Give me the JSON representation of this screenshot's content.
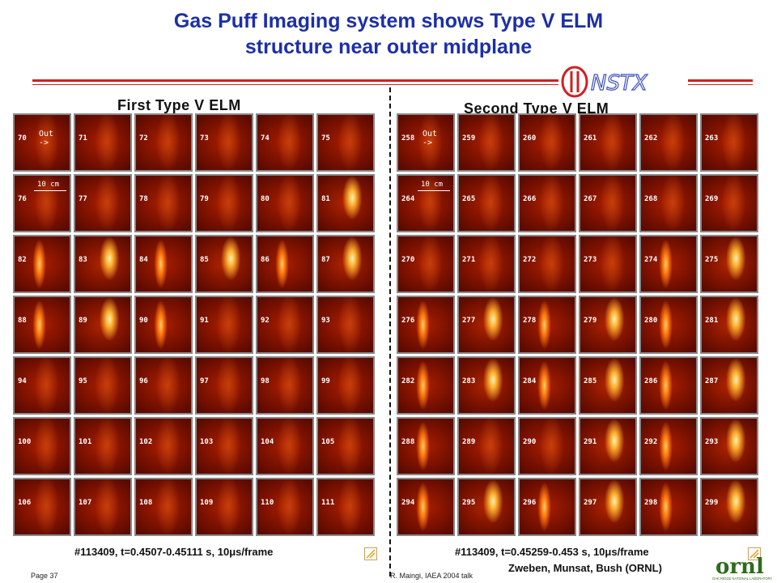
{
  "title": {
    "line1": "Gas Puff Imaging system shows Type V ELM",
    "line2": "structure near outer midplane"
  },
  "logo_text": "NSTX",
  "colors": {
    "title": "#1c2fa8",
    "accent_rule": "#d02020",
    "frame_base": "#7e1200"
  },
  "left_panel": {
    "title": "First Type V ELM",
    "out_label": "Out",
    "out_arrow": "->",
    "scale_label": "10 cm",
    "frames": [
      "70",
      "71",
      "72",
      "73",
      "74",
      "75",
      "76",
      "77",
      "78",
      "79",
      "80",
      "81",
      "82",
      "83",
      "84",
      "85",
      "86",
      "87",
      "88",
      "89",
      "90",
      "91",
      "92",
      "93",
      "94",
      "95",
      "96",
      "97",
      "98",
      "99",
      "100",
      "101",
      "102",
      "103",
      "104",
      "105",
      "106",
      "107",
      "108",
      "109",
      "110",
      "111"
    ],
    "caption": "#113409, t=0.4507-0.45111 s, 10μs/frame"
  },
  "right_panel": {
    "title": "Second Type V ELM",
    "out_label": "Out",
    "out_arrow": "->",
    "scale_label": "10 cm",
    "frames": [
      "258",
      "259",
      "260",
      "261",
      "262",
      "263",
      "264",
      "265",
      "266",
      "267",
      "268",
      "269",
      "270",
      "271",
      "272",
      "273",
      "274",
      "275",
      "276",
      "277",
      "278",
      "279",
      "280",
      "281",
      "282",
      "283",
      "284",
      "285",
      "286",
      "287",
      "288",
      "289",
      "290",
      "291",
      "292",
      "293",
      "294",
      "295",
      "296",
      "297",
      "298",
      "299"
    ],
    "caption": "#113409, t=0.45259-0.453 s, 10μs/frame",
    "credit": "Zweben, Munsat, Bush (ORNL)"
  },
  "footer": {
    "page": "Page 37",
    "author": "R. Maingi, IAEA 2004 talk",
    "org_logo_text": "ornl",
    "org_logo_subtext": "OAK RIDGE NATIONAL LABORATORY"
  }
}
